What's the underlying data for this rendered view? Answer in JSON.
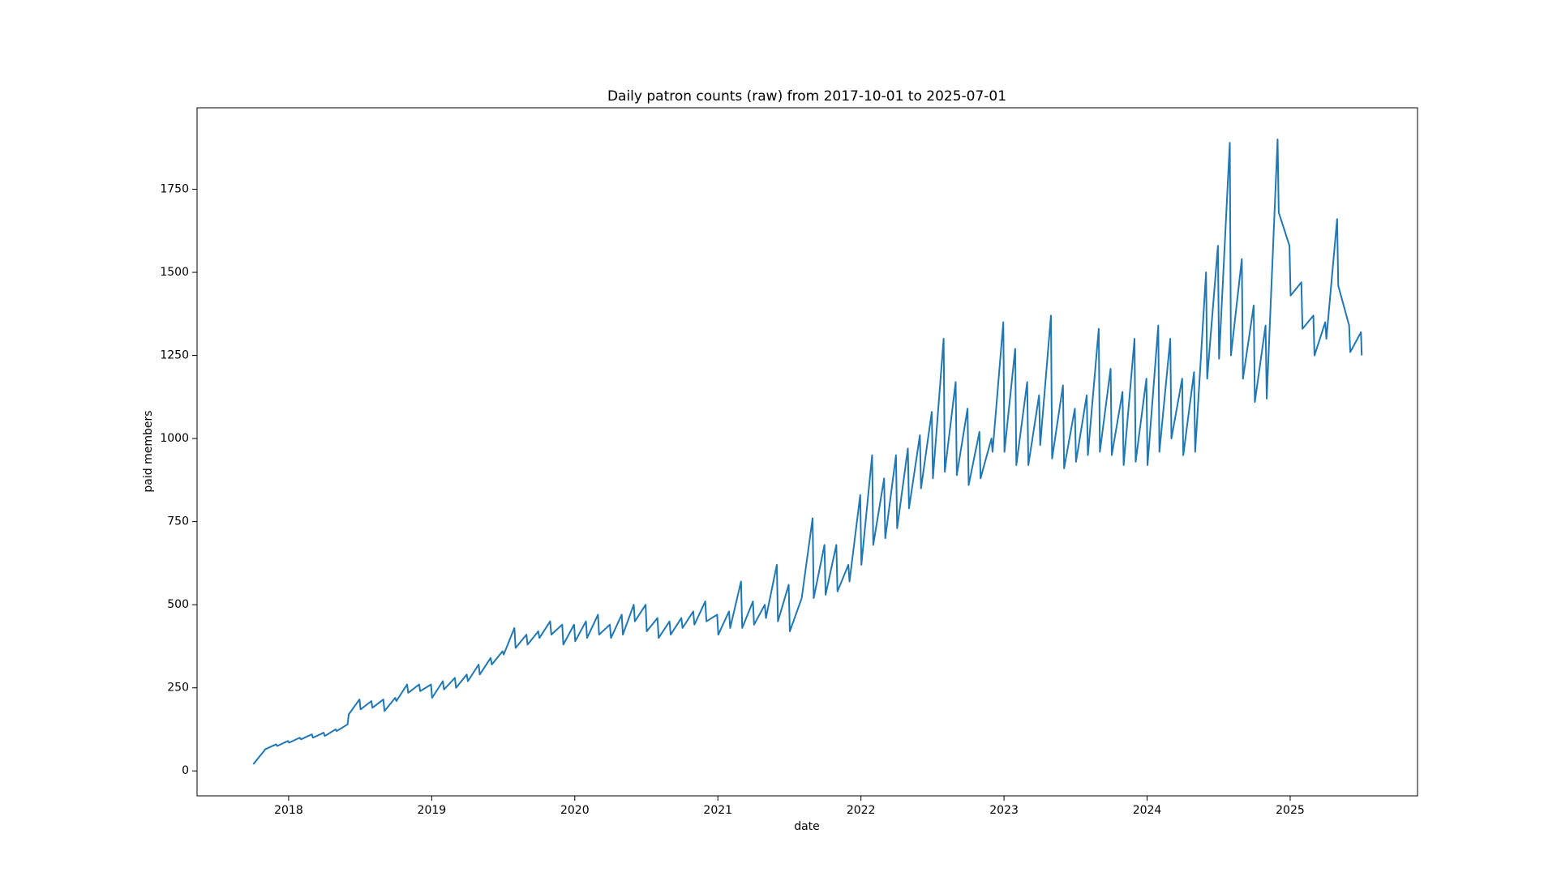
{
  "chart_data": {
    "type": "line",
    "title": "Daily patron counts (raw) from 2017-10-01 to 2025-07-01",
    "xlabel": "date",
    "ylabel": "paid members",
    "xlim": [
      2017.36,
      2025.89
    ],
    "ylim": [
      -75,
      1995
    ],
    "xticks": [
      2018,
      2019,
      2020,
      2021,
      2022,
      2023,
      2024,
      2025
    ],
    "yticks": [
      0,
      250,
      500,
      750,
      1000,
      1250,
      1500,
      1750
    ],
    "grid": false,
    "series": [
      {
        "color": "#1f77b4",
        "x": [
          2017.753,
          2017.828,
          2017.836,
          2017.912,
          2017.92,
          2017.995,
          2018.003,
          2018.078,
          2018.086,
          2018.162,
          2018.17,
          2018.245,
          2018.253,
          2018.328,
          2018.336,
          2018.412,
          2018.42,
          2018.495,
          2018.503,
          2018.578,
          2018.586,
          2018.662,
          2018.67,
          2018.745,
          2018.753,
          2018.828,
          2018.836,
          2018.912,
          2018.92,
          2018.995,
          2019.003,
          2019.078,
          2019.086,
          2019.162,
          2019.17,
          2019.245,
          2019.253,
          2019.328,
          2019.336,
          2019.412,
          2019.42,
          2019.495,
          2019.503,
          2019.578,
          2019.586,
          2019.662,
          2019.67,
          2019.745,
          2019.753,
          2019.828,
          2019.836,
          2019.912,
          2019.92,
          2019.995,
          2020.003,
          2020.078,
          2020.086,
          2020.162,
          2020.17,
          2020.245,
          2020.253,
          2020.328,
          2020.336,
          2020.412,
          2020.42,
          2020.495,
          2020.503,
          2020.578,
          2020.586,
          2020.662,
          2020.67,
          2020.745,
          2020.753,
          2020.828,
          2020.836,
          2020.912,
          2020.92,
          2020.995,
          2021.003,
          2021.078,
          2021.086,
          2021.162,
          2021.17,
          2021.245,
          2021.253,
          2021.328,
          2021.336,
          2021.412,
          2021.42,
          2021.495,
          2021.503,
          2021.578,
          2021.586,
          2021.662,
          2021.67,
          2021.745,
          2021.753,
          2021.828,
          2021.836,
          2021.912,
          2021.92,
          2021.995,
          2022.003,
          2022.078,
          2022.086,
          2022.162,
          2022.17,
          2022.245,
          2022.253,
          2022.328,
          2022.336,
          2022.412,
          2022.42,
          2022.495,
          2022.503,
          2022.578,
          2022.586,
          2022.662,
          2022.67,
          2022.745,
          2022.753,
          2022.828,
          2022.836,
          2022.912,
          2022.92,
          2022.995,
          2023.003,
          2023.078,
          2023.086,
          2023.162,
          2023.17,
          2023.245,
          2023.253,
          2023.328,
          2023.336,
          2023.412,
          2023.42,
          2023.495,
          2023.503,
          2023.578,
          2023.586,
          2023.662,
          2023.67,
          2023.745,
          2023.753,
          2023.828,
          2023.836,
          2023.912,
          2023.92,
          2023.995,
          2024.003,
          2024.078,
          2024.086,
          2024.162,
          2024.17,
          2024.245,
          2024.253,
          2024.328,
          2024.336,
          2024.412,
          2024.42,
          2024.495,
          2024.503,
          2024.578,
          2024.586,
          2024.662,
          2024.67,
          2024.745,
          2024.753,
          2024.828,
          2024.836,
          2024.912,
          2024.92,
          2024.995,
          2025.003,
          2025.078,
          2025.086,
          2025.162,
          2025.17,
          2025.245,
          2025.253,
          2025.328,
          2025.336,
          2025.412,
          2025.42,
          2025.495,
          2025.5
        ],
        "values": [
          20,
          60,
          65,
          80,
          75,
          90,
          85,
          100,
          95,
          110,
          100,
          115,
          105,
          125,
          120,
          140,
          170,
          215,
          185,
          210,
          190,
          215,
          180,
          220,
          210,
          260,
          235,
          260,
          240,
          260,
          220,
          270,
          245,
          280,
          250,
          290,
          270,
          320,
          290,
          340,
          320,
          360,
          350,
          430,
          370,
          410,
          380,
          420,
          400,
          450,
          410,
          440,
          380,
          440,
          390,
          450,
          400,
          470,
          410,
          440,
          400,
          470,
          410,
          500,
          450,
          500,
          420,
          460,
          400,
          450,
          410,
          460,
          430,
          480,
          440,
          510,
          450,
          470,
          410,
          480,
          430,
          570,
          430,
          510,
          440,
          500,
          460,
          620,
          450,
          560,
          420,
          510,
          520,
          760,
          520,
          680,
          530,
          680,
          540,
          620,
          570,
          830,
          620,
          950,
          680,
          880,
          700,
          950,
          730,
          970,
          790,
          1010,
          850,
          1080,
          880,
          1300,
          900,
          1170,
          890,
          1090,
          860,
          1020,
          880,
          1000,
          960,
          1350,
          960,
          1270,
          920,
          1170,
          920,
          1130,
          980,
          1370,
          940,
          1160,
          910,
          1090,
          930,
          1130,
          950,
          1330,
          960,
          1210,
          950,
          1140,
          920,
          1300,
          930,
          1180,
          920,
          1340,
          960,
          1300,
          1000,
          1180,
          950,
          1200,
          960,
          1500,
          1180,
          1580,
          1240,
          1890,
          1250,
          1540,
          1180,
          1400,
          1110,
          1340,
          1120,
          1900,
          1680,
          1580,
          1430,
          1470,
          1330,
          1370,
          1250,
          1350,
          1300,
          1660,
          1460,
          1340,
          1260,
          1320,
          1250
        ]
      }
    ]
  }
}
